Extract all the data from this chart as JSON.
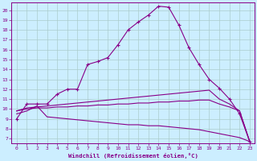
{
  "xlabel": "Windchill (Refroidissement éolien,°C)",
  "bg_color": "#cceeff",
  "line_color": "#880088",
  "grid_color": "#aacccc",
  "xlim": [
    -0.5,
    23.5
  ],
  "ylim": [
    6.5,
    20.8
  ],
  "xticks": [
    0,
    1,
    2,
    3,
    4,
    5,
    6,
    7,
    8,
    9,
    10,
    11,
    12,
    13,
    14,
    15,
    16,
    17,
    18,
    19,
    20,
    21,
    22,
    23
  ],
  "yticks": [
    7,
    8,
    9,
    10,
    11,
    12,
    13,
    14,
    15,
    16,
    17,
    18,
    19,
    20
  ],
  "curve1_x": [
    0,
    1,
    2,
    3,
    4,
    5,
    6,
    7,
    8,
    9,
    10,
    11,
    12,
    13,
    14,
    15,
    16,
    17,
    18,
    19,
    20,
    21,
    22,
    23
  ],
  "curve1_y": [
    9.0,
    10.5,
    10.5,
    10.5,
    11.5,
    12.0,
    12.0,
    14.5,
    14.8,
    15.2,
    16.5,
    18.0,
    18.8,
    19.5,
    20.4,
    20.3,
    18.5,
    16.2,
    14.5,
    13.0,
    12.1,
    11.0,
    9.5,
    6.7
  ],
  "curve2_x": [
    0,
    1,
    2,
    3,
    4,
    5,
    6,
    7,
    8,
    9,
    10,
    11,
    12,
    13,
    14,
    15,
    16,
    17,
    18,
    19,
    20,
    21,
    22,
    23
  ],
  "curve2_y": [
    9.8,
    10.1,
    10.2,
    10.3,
    10.4,
    10.5,
    10.6,
    10.7,
    10.8,
    10.9,
    11.0,
    11.1,
    11.2,
    11.3,
    11.4,
    11.5,
    11.6,
    11.7,
    11.8,
    11.9,
    11.0,
    10.5,
    9.8,
    6.7
  ],
  "curve3_x": [
    0,
    1,
    2,
    3,
    4,
    5,
    6,
    7,
    8,
    9,
    10,
    11,
    12,
    13,
    14,
    15,
    16,
    17,
    18,
    19,
    20,
    21,
    22,
    23
  ],
  "curve3_y": [
    9.8,
    10.0,
    10.1,
    10.1,
    10.2,
    10.2,
    10.3,
    10.3,
    10.4,
    10.4,
    10.5,
    10.5,
    10.6,
    10.6,
    10.7,
    10.7,
    10.8,
    10.8,
    10.9,
    10.9,
    10.5,
    10.2,
    9.8,
    6.7
  ],
  "curve4_x": [
    0,
    1,
    2,
    3,
    4,
    5,
    6,
    7,
    8,
    9,
    10,
    11,
    12,
    13,
    14,
    15,
    16,
    17,
    18,
    19,
    20,
    21,
    22,
    23
  ],
  "curve4_y": [
    9.5,
    9.8,
    10.3,
    9.2,
    9.1,
    9.0,
    8.9,
    8.8,
    8.7,
    8.6,
    8.5,
    8.4,
    8.4,
    8.3,
    8.3,
    8.2,
    8.1,
    8.0,
    7.9,
    7.7,
    7.5,
    7.3,
    7.1,
    6.7
  ]
}
